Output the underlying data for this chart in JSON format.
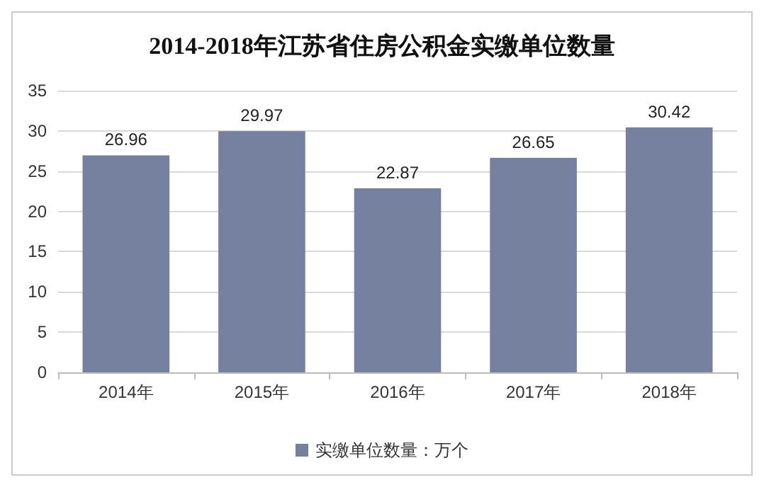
{
  "chart_data": {
    "type": "bar",
    "title": "2014-2018年江苏省住房公积金实缴单位数量",
    "categories": [
      "2014年",
      "2015年",
      "2016年",
      "2017年",
      "2018年"
    ],
    "series": [
      {
        "name": "实缴单位数量：万个",
        "color": "#75819f",
        "values": [
          26.96,
          29.97,
          22.87,
          26.65,
          30.42
        ]
      }
    ],
    "ylim": [
      0,
      35
    ],
    "yticks": [
      0,
      5,
      10,
      15,
      20,
      25,
      30,
      35
    ],
    "grid": "y",
    "legend": "bottom",
    "data_labels": true
  }
}
